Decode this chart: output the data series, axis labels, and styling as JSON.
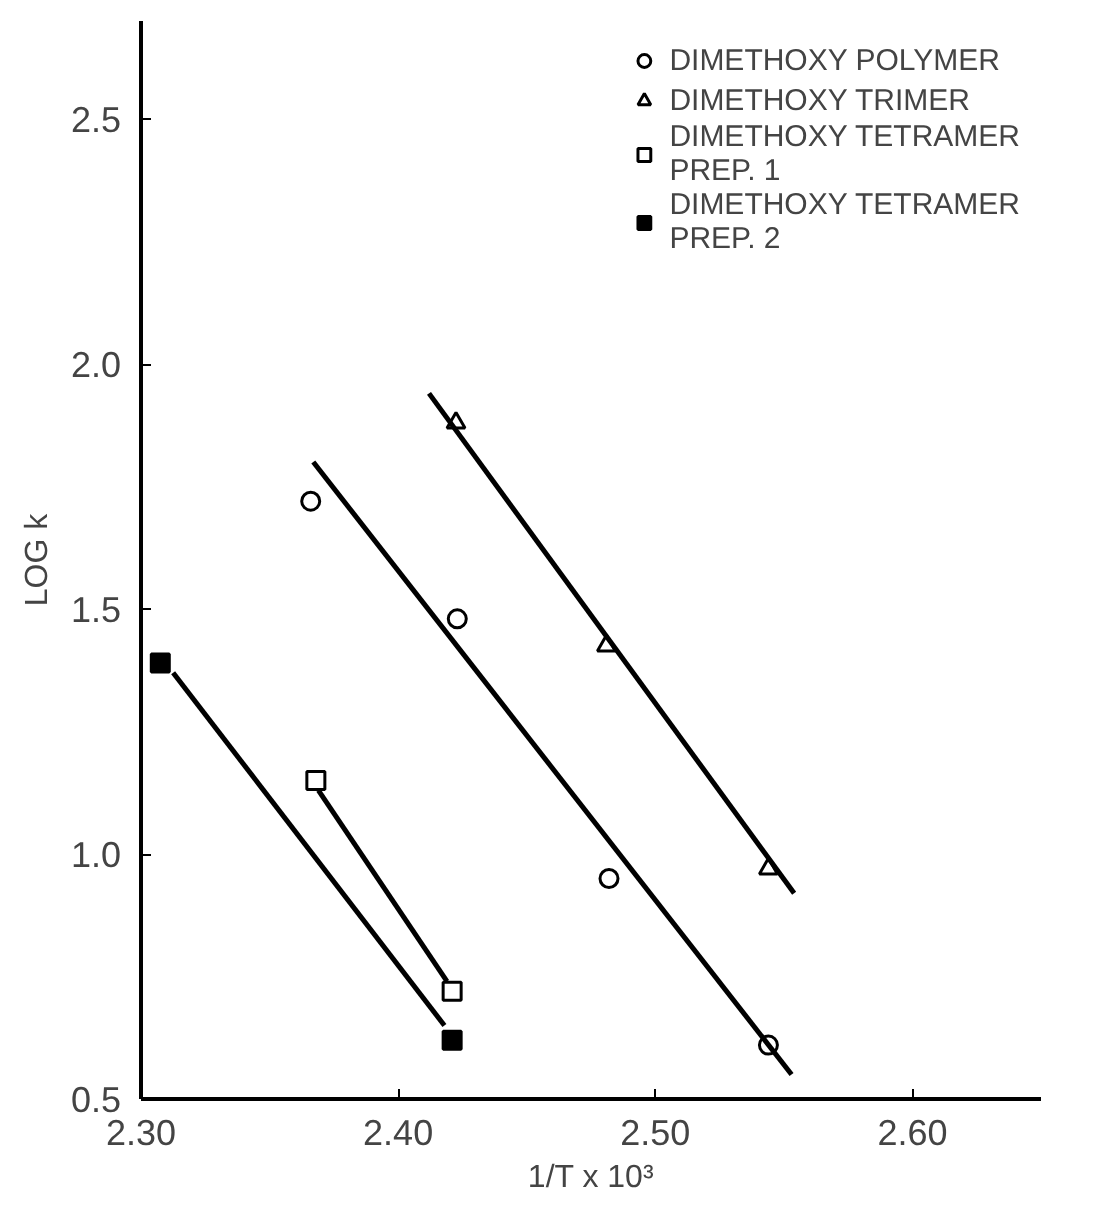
{
  "chart_data": {
    "type": "scatter",
    "xlabel": "1/T x 10³",
    "ylabel": "LOG k",
    "xlim": [
      2.3,
      2.65
    ],
    "ylim": [
      0.5,
      2.7
    ],
    "xticks": [
      {
        "value": 2.3,
        "label": "2.30"
      },
      {
        "value": 2.4,
        "label": "2.40"
      },
      {
        "value": 2.5,
        "label": "2.50"
      },
      {
        "value": 2.6,
        "label": "2.60"
      }
    ],
    "yticks": [
      0.5,
      {
        "value": 1.0,
        "label": "1.0"
      },
      1.5,
      {
        "value": 2.0,
        "label": "2.0"
      },
      2.5
    ],
    "grid": false,
    "legend": "top right",
    "series": [
      {
        "name": "DIMETHOXY POLYMER",
        "color": "#ffffff",
        "marker": "circle",
        "x": [
          2.366,
          2.423,
          2.482,
          2.544
        ],
        "values": [
          1.72,
          1.48,
          0.95,
          0.61
        ]
      },
      {
        "name": "DIMETHOXY TRIMER",
        "color": "#ffffff",
        "marker": "triangle",
        "x": [
          2.4225,
          2.481,
          2.544
        ],
        "values": [
          1.88,
          1.425,
          0.97
        ]
      },
      {
        "name": "DIMETHOXY TETRAMER\nPREP. 1",
        "color": "#ffffff",
        "marker": "square",
        "x": [
          2.368,
          2.421
        ],
        "values": [
          1.15,
          0.72
        ]
      },
      {
        "name": "DIMETHOXY TETRAMER\nPREP. 2",
        "color": "#000000",
        "marker": "square",
        "x": [
          2.3075,
          2.421
        ],
        "values": [
          1.39,
          0.62
        ]
      },
      {
        "type": "line",
        "color": "#000000",
        "line_style": "solid",
        "x": [
          2.367,
          2.553
        ],
        "values": [
          1.8,
          0.55
        ]
      },
      {
        "type": "line",
        "color": "#000000",
        "line_style": "solid",
        "x": [
          2.412,
          2.554
        ],
        "values": [
          1.94,
          0.92
        ]
      },
      {
        "type": "line",
        "color": "#000000",
        "line_style": "solid",
        "x": [
          2.369,
          2.419
        ],
        "values": [
          1.13,
          0.74
        ]
      },
      {
        "type": "line",
        "color": "#000000",
        "line_style": "solid",
        "x": [
          2.3125,
          2.418
        ],
        "values": [
          1.37,
          0.65
        ]
      }
    ]
  }
}
